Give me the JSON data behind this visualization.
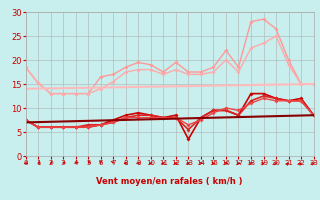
{
  "title": "",
  "xlabel": "Vent moyen/en rafales ( km/h )",
  "xlim": [
    0,
    23
  ],
  "ylim": [
    0,
    30
  ],
  "yticks": [
    0,
    5,
    10,
    15,
    20,
    25,
    30
  ],
  "xticks": [
    0,
    1,
    2,
    3,
    4,
    5,
    6,
    7,
    8,
    9,
    10,
    11,
    12,
    13,
    14,
    15,
    16,
    17,
    18,
    19,
    20,
    21,
    22,
    23
  ],
  "bg_color": "#c8eeed",
  "grid_color": "#aaaaaa",
  "series": [
    {
      "x": [
        0,
        1,
        2,
        3,
        4,
        5,
        6,
        7,
        8,
        9,
        10,
        11,
        12,
        13,
        14,
        15,
        16,
        17,
        18,
        19,
        20,
        21,
        22,
        23
      ],
      "y": [
        18.5,
        15.2,
        13.0,
        13.0,
        13.0,
        13.0,
        16.5,
        17.0,
        18.5,
        19.5,
        19.0,
        17.5,
        19.5,
        17.5,
        17.5,
        18.5,
        22.0,
        18.5,
        28.0,
        28.5,
        26.5,
        20.0,
        15.0,
        15.0
      ],
      "color": "#ff9999",
      "lw": 1.0,
      "marker": "D",
      "ms": 2
    },
    {
      "x": [
        0,
        1,
        2,
        3,
        4,
        5,
        6,
        7,
        8,
        9,
        10,
        11,
        12,
        13,
        14,
        15,
        16,
        17,
        18,
        19,
        20,
        21,
        22,
        23
      ],
      "y": [
        18.5,
        15.2,
        13.0,
        13.0,
        13.0,
        13.0,
        14.0,
        15.5,
        17.5,
        18.0,
        18.0,
        17.0,
        18.0,
        17.0,
        17.0,
        17.5,
        20.0,
        17.5,
        22.5,
        23.5,
        25.0,
        19.0,
        15.0,
        15.0
      ],
      "color": "#ffaaaa",
      "lw": 1.0,
      "marker": "D",
      "ms": 2
    },
    {
      "x": [
        0,
        1,
        2,
        3,
        4,
        5,
        6,
        7,
        8,
        9,
        10,
        11,
        12,
        13,
        14,
        15,
        16,
        17,
        18,
        19,
        20,
        21,
        22,
        23
      ],
      "y": [
        7.5,
        6.0,
        6.0,
        6.0,
        6.0,
        6.0,
        6.5,
        7.5,
        8.5,
        9.0,
        8.5,
        8.0,
        8.5,
        3.5,
        8.0,
        9.5,
        9.5,
        8.5,
        13.0,
        13.0,
        12.0,
        11.5,
        12.0,
        8.5
      ],
      "color": "#cc0000",
      "lw": 1.2,
      "marker": "D",
      "ms": 2
    },
    {
      "x": [
        0,
        1,
        2,
        3,
        4,
        5,
        6,
        7,
        8,
        9,
        10,
        11,
        12,
        13,
        14,
        15,
        16,
        17,
        18,
        19,
        20,
        21,
        22,
        23
      ],
      "y": [
        7.5,
        6.0,
        6.0,
        6.0,
        6.0,
        6.5,
        6.5,
        7.0,
        8.0,
        8.5,
        8.5,
        8.0,
        8.0,
        5.5,
        8.0,
        9.5,
        9.5,
        8.5,
        11.5,
        12.5,
        12.0,
        11.5,
        11.5,
        8.5
      ],
      "color": "#dd2222",
      "lw": 1.2,
      "marker": "D",
      "ms": 2
    },
    {
      "x": [
        0,
        1,
        2,
        3,
        4,
        5,
        6,
        7,
        8,
        9,
        10,
        11,
        12,
        13,
        14,
        15,
        16,
        17,
        18,
        19,
        20,
        21,
        22,
        23
      ],
      "y": [
        7.5,
        6.0,
        6.0,
        6.0,
        6.0,
        6.0,
        6.5,
        7.0,
        8.0,
        8.0,
        8.0,
        8.0,
        8.0,
        6.5,
        7.5,
        9.0,
        10.0,
        9.5,
        11.0,
        12.0,
        11.5,
        11.5,
        11.5,
        8.5
      ],
      "color": "#ee4444",
      "lw": 1.0,
      "marker": "D",
      "ms": 2
    },
    {
      "x": [
        0,
        23
      ],
      "y": [
        7.0,
        8.5
      ],
      "color": "#880000",
      "lw": 1.5,
      "marker": null,
      "ms": 0
    },
    {
      "x": [
        0,
        23
      ],
      "y": [
        14.0,
        15.0
      ],
      "color": "#ffbbbb",
      "lw": 1.5,
      "marker": null,
      "ms": 0
    }
  ],
  "wind_arrows": {
    "y": -2.5,
    "colors": [
      "#cc0000"
    ],
    "angles": [
      225,
      210,
      210,
      210,
      200,
      200,
      180,
      170,
      270,
      270,
      270,
      270,
      270,
      270,
      90,
      90,
      90,
      90,
      60,
      45,
      45,
      30,
      30,
      45
    ]
  }
}
